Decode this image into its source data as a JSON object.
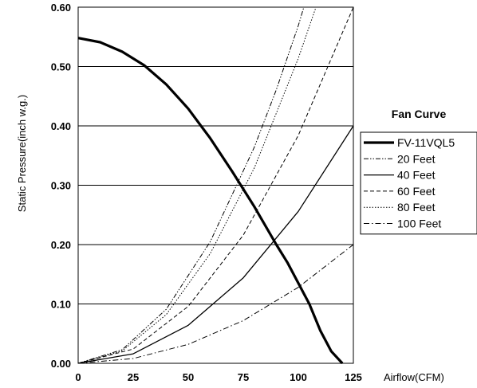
{
  "chart_data": {
    "type": "line",
    "title": "",
    "xlabel": "Airflow(CFM)",
    "ylabel": "Static Pressure(inch w.g.)",
    "xlim": [
      0,
      125
    ],
    "ylim": [
      0,
      0.6
    ],
    "x_ticks": [
      "0",
      "25",
      "50",
      "75",
      "100",
      "125"
    ],
    "y_ticks": [
      "0.00",
      "0.10",
      "0.20",
      "0.30",
      "0.40",
      "0.50",
      "0.60"
    ],
    "grid": "horizontal",
    "legend": {
      "title": "Fan Curve",
      "position": "right"
    },
    "series": [
      {
        "name": "FV-11VQL5",
        "style": "solid-thick",
        "x": [
          0,
          10,
          20,
          30,
          40,
          50,
          60,
          70,
          80,
          90,
          95,
          100,
          105,
          110,
          115,
          120
        ],
        "y": [
          0.548,
          0.541,
          0.525,
          0.502,
          0.47,
          0.429,
          0.379,
          0.323,
          0.264,
          0.2,
          0.17,
          0.135,
          0.1,
          0.055,
          0.02,
          0.0
        ]
      },
      {
        "name": "20 Feet",
        "style": "dash-dot-dot",
        "x": [
          0,
          20,
          40,
          60,
          80,
          90,
          100,
          102.5
        ],
        "y": [
          0,
          0.023,
          0.091,
          0.205,
          0.364,
          0.461,
          0.569,
          0.6
        ]
      },
      {
        "name": "40 Feet",
        "style": "solid",
        "x": [
          0,
          25,
          50,
          75,
          100,
          125
        ],
        "y": [
          0,
          0.016,
          0.064,
          0.144,
          0.256,
          0.4
        ]
      },
      {
        "name": "60 Feet",
        "style": "dashed",
        "x": [
          0,
          25,
          50,
          75,
          100,
          125
        ],
        "y": [
          0,
          0.024,
          0.096,
          0.216,
          0.384,
          0.6
        ]
      },
      {
        "name": "80 Feet",
        "style": "dotted",
        "x": [
          0,
          20,
          40,
          60,
          80,
          100,
          108
        ],
        "y": [
          0,
          0.021,
          0.082,
          0.185,
          0.329,
          0.514,
          0.6
        ]
      },
      {
        "name": "100 Feet",
        "style": "dash-dot",
        "x": [
          0,
          25,
          50,
          75,
          100,
          125
        ],
        "y": [
          0,
          0.008,
          0.032,
          0.072,
          0.128,
          0.2
        ]
      }
    ]
  },
  "styles": {
    "line_color": "#000000",
    "grid_color": "#000000",
    "background": "#ffffff"
  }
}
